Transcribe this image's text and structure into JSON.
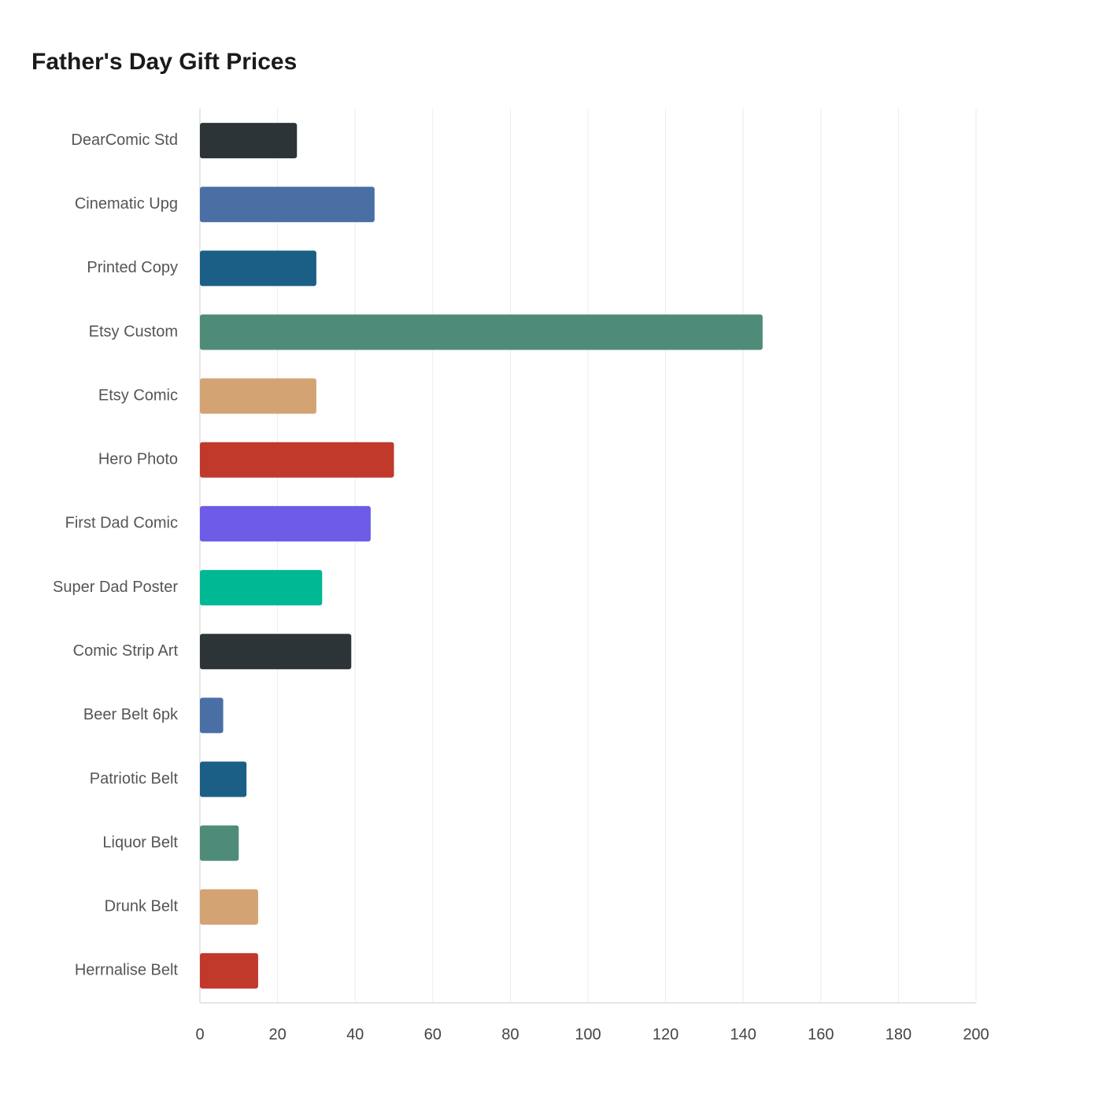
{
  "chart_data": {
    "type": "bar",
    "orientation": "horizontal",
    "title": "Father's Day Gift Prices",
    "categories": [
      "DearComic Std",
      "Cinematic Upg",
      "Printed Copy",
      "Etsy Custom",
      "Etsy Comic",
      "Hero Photo",
      "First Dad Comic",
      "Super Dad Poster",
      "Comic Strip Art",
      "Beer Belt 6pk",
      "Patriotic Belt",
      "Liquor Belt",
      "Drunk Belt",
      "Herrnalise Belt"
    ],
    "values": [
      25,
      45,
      30,
      145,
      30,
      50,
      44,
      31.5,
      39,
      6,
      12,
      10,
      15,
      15
    ],
    "colors": [
      "#2c3437",
      "#4a6fa5",
      "#1b5f87",
      "#4e8c79",
      "#d4a373",
      "#c0392b",
      "#6c5ce7",
      "#00b894",
      "#2c3437",
      "#4a6fa5",
      "#1b5f87",
      "#4e8c79",
      "#d4a373",
      "#c0392b"
    ],
    "xlim": [
      0,
      200
    ],
    "xticks": [
      0,
      20,
      40,
      60,
      80,
      100,
      120,
      140,
      160,
      180,
      200
    ],
    "grid": true
  }
}
